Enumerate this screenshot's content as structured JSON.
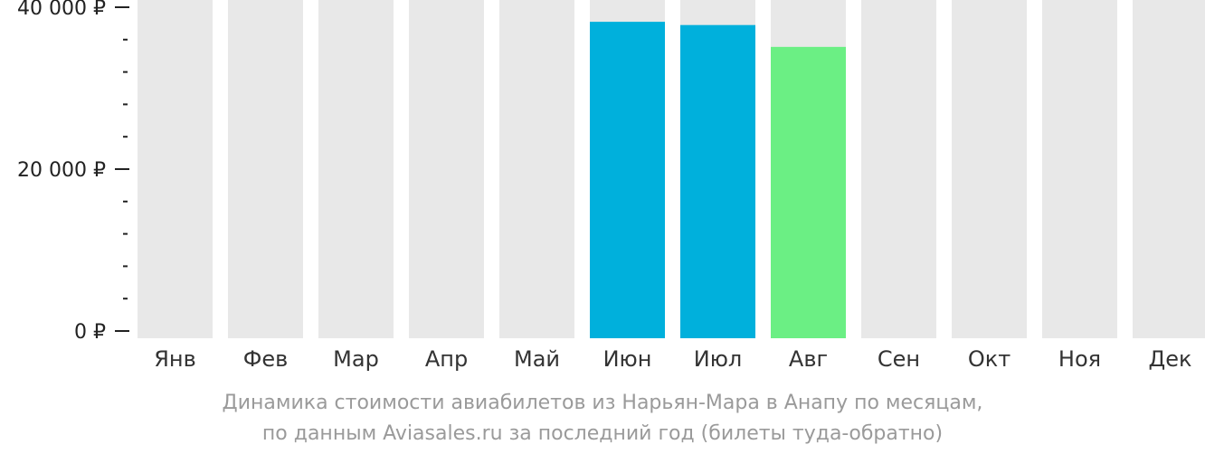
{
  "chart_data": {
    "type": "bar",
    "categories": [
      "Янв",
      "Фев",
      "Мар",
      "Апр",
      "Май",
      "Июн",
      "Июл",
      "Авг",
      "Сен",
      "Окт",
      "Ноя",
      "Дек"
    ],
    "values": [
      null,
      null,
      null,
      null,
      null,
      38200,
      37800,
      35100,
      null,
      null,
      null,
      null
    ],
    "bar_colors": [
      null,
      null,
      null,
      null,
      null,
      "#00b0dc",
      "#00b0dc",
      "#6bef84",
      null,
      null,
      null,
      null
    ],
    "background_bar_color": "#e8e8e8",
    "ylim": [
      0,
      40000
    ],
    "yticks": [
      {
        "value": 0,
        "label": "0 ₽"
      },
      {
        "value": 20000,
        "label": "20 000 ₽"
      },
      {
        "value": 40000,
        "label": "40 000 ₽"
      }
    ],
    "minor_ytick_step": 4000,
    "title": "",
    "xlabel": "",
    "ylabel": "",
    "grid": false
  },
  "caption": {
    "line1": "Динамика стоимости авиабилетов из Нарьян-Мара в Анапу по месяцам,",
    "line2": "по данным Aviasales.ru за последний год (билеты туда-обратно)"
  }
}
